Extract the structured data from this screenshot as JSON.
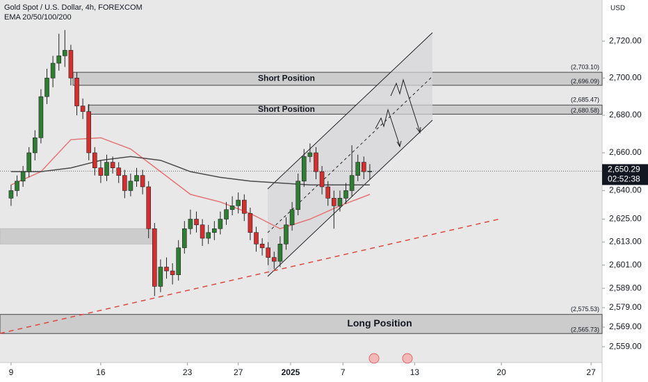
{
  "chart_data": {
    "type": "candlestick",
    "title": "Gold Spot / U.S. Dollar, 4h, FOREXCOM",
    "indicator": "EMA 20/50/100/200",
    "currency": "USD",
    "log_scale": true,
    "up_color": "#2e7d32",
    "down_color": "#d32f2f",
    "x": [
      0,
      2,
      4,
      6,
      8,
      10,
      12,
      14,
      16,
      18,
      20,
      22,
      24,
      26,
      28,
      30,
      32,
      34,
      36,
      38,
      40,
      42,
      44,
      46,
      48,
      50,
      52,
      54,
      56,
      58,
      60,
      62,
      64,
      66,
      68,
      70,
      72,
      74,
      76,
      78,
      80,
      82,
      84,
      86,
      88,
      90,
      92,
      94,
      96,
      98,
      100,
      102,
      104,
      106,
      108,
      110,
      112,
      114,
      116,
      118,
      120
    ],
    "ohlc": [
      [
        2636,
        2643,
        2632,
        2640
      ],
      [
        2640,
        2648,
        2637,
        2645
      ],
      [
        2645,
        2653,
        2642,
        2650
      ],
      [
        2650,
        2663,
        2647,
        2660
      ],
      [
        2660,
        2672,
        2656,
        2668
      ],
      [
        2668,
        2694,
        2665,
        2690
      ],
      [
        2690,
        2705,
        2686,
        2700
      ],
      [
        2700,
        2712,
        2695,
        2708
      ],
      [
        2708,
        2724,
        2704,
        2712
      ],
      [
        2712,
        2726,
        2706,
        2715
      ],
      [
        2715,
        2718,
        2696,
        2700
      ],
      [
        2700,
        2703,
        2680,
        2685
      ],
      [
        2685,
        2689,
        2678,
        2682
      ],
      [
        2682,
        2686,
        2656,
        2660
      ],
      [
        2660,
        2663,
        2648,
        2652
      ],
      [
        2652,
        2656,
        2644,
        2648
      ],
      [
        2648,
        2659,
        2645,
        2655
      ],
      [
        2655,
        2658,
        2649,
        2652
      ],
      [
        2652,
        2655,
        2644,
        2648
      ],
      [
        2648,
        2651,
        2636,
        2640
      ],
      [
        2640,
        2649,
        2637,
        2645
      ],
      [
        2645,
        2652,
        2642,
        2648
      ],
      [
        2648,
        2651,
        2638,
        2642
      ],
      [
        2642,
        2645,
        2615,
        2620
      ],
      [
        2620,
        2623,
        2585,
        2590
      ],
      [
        2590,
        2604,
        2587,
        2600
      ],
      [
        2600,
        2605,
        2594,
        2598
      ],
      [
        2598,
        2602,
        2591,
        2596
      ],
      [
        2596,
        2614,
        2593,
        2610
      ],
      [
        2610,
        2624,
        2607,
        2620
      ],
      [
        2620,
        2630,
        2617,
        2625
      ],
      [
        2625,
        2629,
        2618,
        2622
      ],
      [
        2622,
        2625,
        2611,
        2615
      ],
      [
        2615,
        2622,
        2612,
        2618
      ],
      [
        2618,
        2624,
        2614,
        2620
      ],
      [
        2620,
        2629,
        2617,
        2625
      ],
      [
        2625,
        2634,
        2622,
        2630
      ],
      [
        2630,
        2637,
        2627,
        2632
      ],
      [
        2632,
        2639,
        2628,
        2635
      ],
      [
        2635,
        2638,
        2624,
        2628
      ],
      [
        2628,
        2631,
        2614,
        2618
      ],
      [
        2618,
        2621,
        2608,
        2612
      ],
      [
        2612,
        2615,
        2606,
        2610
      ],
      [
        2610,
        2613,
        2601,
        2605
      ],
      [
        2605,
        2608,
        2599,
        2603
      ],
      [
        2603,
        2616,
        2600,
        2612
      ],
      [
        2612,
        2626,
        2609,
        2622
      ],
      [
        2622,
        2634,
        2619,
        2630
      ],
      [
        2630,
        2649,
        2627,
        2645
      ],
      [
        2645,
        2662,
        2642,
        2658
      ],
      [
        2658,
        2665,
        2655,
        2660
      ],
      [
        2660,
        2663,
        2646,
        2650
      ],
      [
        2650,
        2653,
        2638,
        2642
      ],
      [
        2642,
        2645,
        2632,
        2636
      ],
      [
        2636,
        2640,
        2620,
        2632
      ],
      [
        2632,
        2640,
        2629,
        2636
      ],
      [
        2636,
        2644,
        2633,
        2640
      ],
      [
        2640,
        2664,
        2637,
        2648
      ],
      [
        2648,
        2659,
        2645,
        2655
      ],
      [
        2655,
        2658,
        2646,
        2650
      ],
      [
        2650,
        2654,
        2646,
        2650.29
      ]
    ],
    "ema": {
      "x": [
        0,
        10,
        20,
        30,
        40,
        50,
        60,
        70,
        80,
        90,
        100,
        110,
        120
      ],
      "series": [
        {
          "color": "#e57373",
          "values": [
            2643,
            2650,
            2667,
            2668,
            2662,
            2650,
            2638,
            2634,
            2628,
            2620,
            2625,
            2632,
            2638
          ]
        },
        {
          "color": "#4a4a4a",
          "values": [
            2650,
            2650,
            2652,
            2656,
            2658,
            2656,
            2650,
            2647,
            2645,
            2644,
            2643,
            2643,
            2643
          ]
        }
      ]
    },
    "zones": [
      {
        "label": "Short Position",
        "high": 2703.1,
        "low": 2696.09,
        "high_label": "(2,703.10)",
        "low_label": "(2,696.09)"
      },
      {
        "label": "Short Position",
        "high": 2685.47,
        "low": 2680.58,
        "high_label": "(2,685.47)",
        "low_label": "(2,680.58)"
      },
      {
        "label": "Long Position",
        "high": 2575.53,
        "low": 2565.73,
        "high_label": "(2,575.53)",
        "low_label": "(2,565.73)"
      },
      {
        "high": 2620,
        "low": 2612
      }
    ],
    "last_price": 2650.29,
    "last_price_label": "2,650.29",
    "countdown": "02:52:38",
    "ylim": [
      2550.9,
      2742.4
    ],
    "yticks": [
      {
        "value": 2720,
        "label": "2,720.00"
      },
      {
        "value": 2700,
        "label": "2,700.00"
      },
      {
        "value": 2680,
        "label": "2,680.00"
      },
      {
        "value": 2660,
        "label": "2,660.00"
      },
      {
        "value": 2640,
        "label": "2,640.00"
      },
      {
        "value": 2625,
        "label": "2,625.00"
      },
      {
        "value": 2613,
        "label": "2,613.00"
      },
      {
        "value": 2601,
        "label": "2,601.00"
      },
      {
        "value": 2589,
        "label": "2,589.00"
      },
      {
        "value": 2579,
        "label": "2,579.00"
      },
      {
        "value": 2569,
        "label": "2,569.00"
      },
      {
        "value": 2559,
        "label": "2,559.00"
      }
    ],
    "xlim": [
      -3.7,
      197.7
    ],
    "xticks": [
      {
        "value": 0,
        "label": "9"
      },
      {
        "value": 30,
        "label": "16"
      },
      {
        "value": 59,
        "label": "23"
      },
      {
        "value": 76,
        "label": "27"
      },
      {
        "value": 93.5,
        "label": "2025"
      },
      {
        "value": 111,
        "label": "7"
      },
      {
        "value": 135,
        "label": "13"
      },
      {
        "value": 164,
        "label": "20"
      },
      {
        "value": 194,
        "label": "27"
      }
    ]
  }
}
